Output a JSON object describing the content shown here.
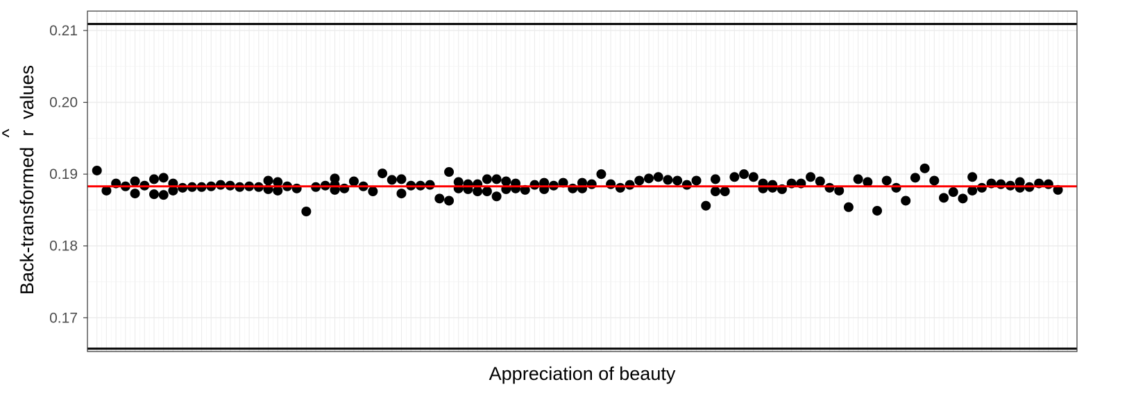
{
  "chart_data": {
    "type": "scatter",
    "title": "",
    "xlabel": "Appreciation of beauty",
    "ylabel_main": "Back-transformed",
    "ylabel_symbol": "r",
    "ylabel_hat": "^",
    "ylabel_tail": "values",
    "x_tick_labels_shown": false,
    "grid": true,
    "xlim": [
      0,
      104
    ],
    "ylim": [
      0.1653,
      0.2127
    ],
    "y_ticks": [
      0.17,
      0.18,
      0.19,
      0.2,
      0.21
    ],
    "y_tick_labels": [
      "0.17",
      "0.18",
      "0.19",
      "0.20",
      "0.21"
    ],
    "reference_lines": {
      "upper": 0.2109,
      "lower": 0.1657,
      "mean": 0.1883,
      "bound_color": "#000000",
      "mean_color": "#ff0000"
    },
    "point_color": "#000000",
    "points": [
      [
        1,
        0.1905
      ],
      [
        2,
        0.1877
      ],
      [
        3,
        0.1887
      ],
      [
        4,
        0.1883
      ],
      [
        5,
        0.189
      ],
      [
        5,
        0.1873
      ],
      [
        6,
        0.1884
      ],
      [
        7,
        0.1893
      ],
      [
        7,
        0.1872
      ],
      [
        8,
        0.1895
      ],
      [
        8,
        0.1871
      ],
      [
        9,
        0.1887
      ],
      [
        9,
        0.1877
      ],
      [
        10,
        0.1881
      ],
      [
        11,
        0.1882
      ],
      [
        12,
        0.1882
      ],
      [
        13,
        0.1883
      ],
      [
        14,
        0.1885
      ],
      [
        15,
        0.1884
      ],
      [
        16,
        0.1882
      ],
      [
        17,
        0.1883
      ],
      [
        18,
        0.1882
      ],
      [
        19,
        0.1891
      ],
      [
        19,
        0.1879
      ],
      [
        20,
        0.1889
      ],
      [
        20,
        0.1877
      ],
      [
        21,
        0.1883
      ],
      [
        22,
        0.188
      ],
      [
        23,
        0.1848
      ],
      [
        24,
        0.1882
      ],
      [
        25,
        0.1884
      ],
      [
        26,
        0.1885
      ],
      [
        26,
        0.1894
      ],
      [
        26,
        0.1878
      ],
      [
        27,
        0.188
      ],
      [
        28,
        0.189
      ],
      [
        29,
        0.1883
      ],
      [
        30,
        0.1876
      ],
      [
        31,
        0.1901
      ],
      [
        32,
        0.1892
      ],
      [
        33,
        0.1893
      ],
      [
        33,
        0.1873
      ],
      [
        34,
        0.1884
      ],
      [
        35,
        0.1884
      ],
      [
        36,
        0.1885
      ],
      [
        37,
        0.1866
      ],
      [
        38,
        0.1903
      ],
      [
        38,
        0.1863
      ],
      [
        39,
        0.1889
      ],
      [
        39,
        0.188
      ],
      [
        40,
        0.1886
      ],
      [
        40,
        0.1879
      ],
      [
        41,
        0.1886
      ],
      [
        41,
        0.1876
      ],
      [
        42,
        0.1893
      ],
      [
        42,
        0.1876
      ],
      [
        43,
        0.1893
      ],
      [
        43,
        0.1869
      ],
      [
        44,
        0.189
      ],
      [
        44,
        0.1879
      ],
      [
        45,
        0.1887
      ],
      [
        45,
        0.188
      ],
      [
        46,
        0.1878
      ],
      [
        47,
        0.1885
      ],
      [
        48,
        0.1888
      ],
      [
        48,
        0.1879
      ],
      [
        49,
        0.1884
      ],
      [
        50,
        0.1888
      ],
      [
        51,
        0.188
      ],
      [
        52,
        0.1888
      ],
      [
        52,
        0.188
      ],
      [
        53,
        0.1886
      ],
      [
        54,
        0.19
      ],
      [
        55,
        0.1886
      ],
      [
        56,
        0.1881
      ],
      [
        57,
        0.1885
      ],
      [
        58,
        0.1891
      ],
      [
        59,
        0.1894
      ],
      [
        60,
        0.1896
      ],
      [
        61,
        0.1892
      ],
      [
        62,
        0.1891
      ],
      [
        63,
        0.1885
      ],
      [
        64,
        0.1891
      ],
      [
        65,
        0.1856
      ],
      [
        66,
        0.1893
      ],
      [
        66,
        0.1876
      ],
      [
        67,
        0.1876
      ],
      [
        68,
        0.1896
      ],
      [
        69,
        0.19
      ],
      [
        70,
        0.1896
      ],
      [
        71,
        0.1887
      ],
      [
        71,
        0.188
      ],
      [
        72,
        0.1885
      ],
      [
        72,
        0.1881
      ],
      [
        73,
        0.1879
      ],
      [
        74,
        0.1887
      ],
      [
        75,
        0.1887
      ],
      [
        76,
        0.1896
      ],
      [
        77,
        0.189
      ],
      [
        78,
        0.1881
      ],
      [
        79,
        0.1877
      ],
      [
        80,
        0.1854
      ],
      [
        81,
        0.1893
      ],
      [
        82,
        0.1889
      ],
      [
        83,
        0.1849
      ],
      [
        84,
        0.1891
      ],
      [
        85,
        0.1881
      ],
      [
        86,
        0.1863
      ],
      [
        87,
        0.1895
      ],
      [
        88,
        0.1908
      ],
      [
        89,
        0.1891
      ],
      [
        90,
        0.1867
      ],
      [
        91,
        0.1875
      ],
      [
        92,
        0.1866
      ],
      [
        93,
        0.1896
      ],
      [
        93,
        0.1877
      ],
      [
        94,
        0.1881
      ],
      [
        95,
        0.1887
      ],
      [
        96,
        0.1886
      ],
      [
        97,
        0.1884
      ],
      [
        98,
        0.1889
      ],
      [
        98,
        0.1881
      ],
      [
        99,
        0.1882
      ],
      [
        100,
        0.1887
      ],
      [
        101,
        0.1886
      ],
      [
        102,
        0.1878
      ]
    ]
  }
}
